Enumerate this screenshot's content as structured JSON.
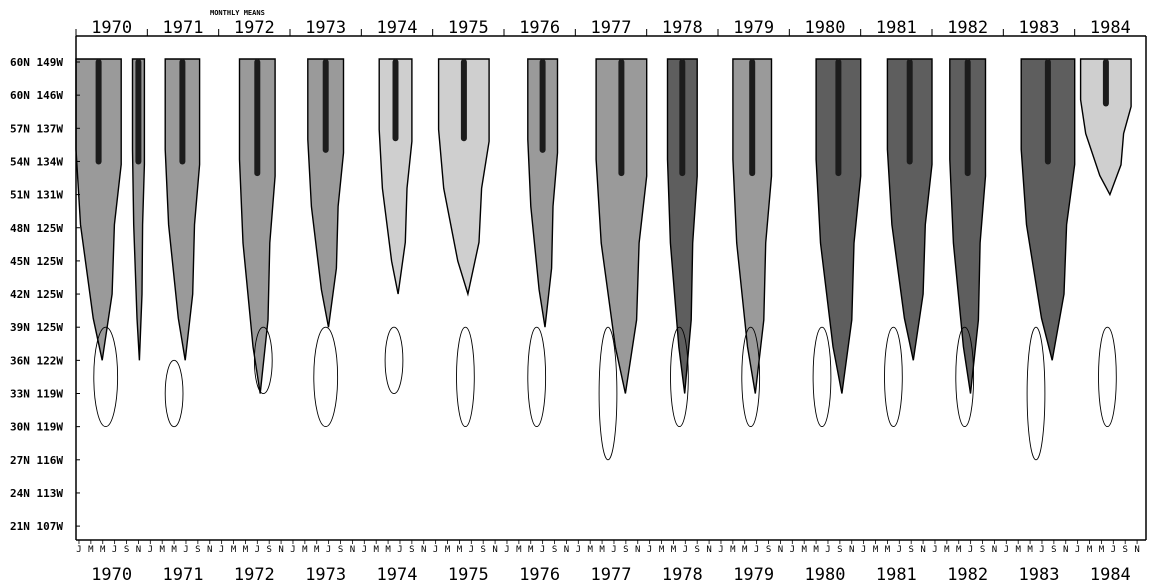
{
  "chart_data": {
    "type": "heatmap",
    "title": "MONTHLY MEANS",
    "x": {
      "years": [
        "1970",
        "1971",
        "1972",
        "1973",
        "1974",
        "1975",
        "1976",
        "1977",
        "1978",
        "1979",
        "1980",
        "1981",
        "1982",
        "1983",
        "1984"
      ],
      "month_ticks": [
        "J",
        "M",
        "M",
        "J",
        "S",
        "N"
      ],
      "range": [
        "1970-01",
        "1984-12"
      ]
    },
    "y": {
      "stations": [
        "60N 149W",
        "60N 146W",
        "57N 137W",
        "54N 134W",
        "51N 131W",
        "48N 125W",
        "45N 125W",
        "42N 125W",
        "39N 125W",
        "36N 122W",
        "33N 119W",
        "30N 119W",
        "27N 116W",
        "24N 113W",
        "21N 107W"
      ]
    },
    "shading_levels": [
      "unshaded",
      "light",
      "medium",
      "dark"
    ],
    "shaded_regions": [
      {
        "year": "1970",
        "start_month": 0.0,
        "end_month": 7.6,
        "southmost_station": "36N 122W",
        "shade": "medium"
      },
      {
        "year": "1970",
        "start_month": 9.5,
        "end_month": 11.5,
        "southmost_station": "36N 122W",
        "shade": "medium"
      },
      {
        "year": "1971",
        "start_month": 3.0,
        "end_month": 8.8,
        "southmost_station": "36N 122W",
        "shade": "medium"
      },
      {
        "year": "1972",
        "start_month": 3.5,
        "end_month": 9.5,
        "southmost_station": "33N 119W",
        "shade": "medium"
      },
      {
        "year": "1973",
        "start_month": 3.0,
        "end_month": 9.0,
        "southmost_station": "39N 125W",
        "shade": "medium"
      },
      {
        "year": "1974",
        "start_month": 3.0,
        "end_month": 8.5,
        "southmost_station": "42N 125W",
        "shade": "light"
      },
      {
        "year": "1975",
        "start_month": 1.0,
        "end_month": 9.5,
        "southmost_station": "42N 125W",
        "shade": "light"
      },
      {
        "year": "1976",
        "start_month": 4.0,
        "end_month": 9.0,
        "southmost_station": "39N 125W",
        "shade": "medium"
      },
      {
        "year": "1977",
        "start_month": 3.5,
        "end_month": 12.0,
        "southmost_station": "33N 119W",
        "shade": "medium"
      },
      {
        "year": "1978",
        "start_month": 3.5,
        "end_month": 8.5,
        "southmost_station": "33N 119W",
        "shade": "dark"
      },
      {
        "year": "1979",
        "start_month": 2.5,
        "end_month": 9.0,
        "southmost_station": "33N 119W",
        "shade": "medium"
      },
      {
        "year": "1980",
        "start_month": 4.5,
        "end_month": 12.0,
        "southmost_station": "33N 119W",
        "shade": "dark"
      },
      {
        "year": "1981",
        "start_month": 4.5,
        "end_month": 12.0,
        "southmost_station": "36N 122W",
        "shade": "dark"
      },
      {
        "year": "1982",
        "start_month": 3.0,
        "end_month": 9.0,
        "southmost_station": "33N 119W",
        "shade": "dark"
      },
      {
        "year": "1983",
        "start_month": 3.0,
        "end_month": 12.0,
        "southmost_station": "36N 122W",
        "shade": "dark"
      },
      {
        "year": "1984",
        "start_month": 1.0,
        "end_month": 9.5,
        "southmost_station": "51N 131W",
        "shade": "light"
      }
    ],
    "contour_regions": [
      {
        "year": "1970",
        "start_month": 3.0,
        "end_month": 7.0,
        "north_station": "39N 125W",
        "south_station": "30N 119W"
      },
      {
        "year": "1971",
        "start_month": 3.0,
        "end_month": 6.0,
        "north_station": "36N 122W",
        "south_station": "30N 119W"
      },
      {
        "year": "1972",
        "start_month": 6.0,
        "end_month": 9.0,
        "north_station": "39N 125W",
        "south_station": "33N 119W"
      },
      {
        "year": "1973",
        "start_month": 4.0,
        "end_month": 8.0,
        "north_station": "39N 125W",
        "south_station": "30N 119W"
      },
      {
        "year": "1974",
        "start_month": 4.0,
        "end_month": 7.0,
        "north_station": "39N 125W",
        "south_station": "33N 119W"
      },
      {
        "year": "1975",
        "start_month": 4.0,
        "end_month": 7.0,
        "north_station": "39N 125W",
        "south_station": "30N 119W"
      },
      {
        "year": "1976",
        "start_month": 4.0,
        "end_month": 7.0,
        "north_station": "39N 125W",
        "south_station": "30N 119W"
      },
      {
        "year": "1977",
        "start_month": 4.0,
        "end_month": 7.0,
        "north_station": "39N 125W",
        "south_station": "27N 116W"
      },
      {
        "year": "1978",
        "start_month": 4.0,
        "end_month": 7.0,
        "north_station": "39N 125W",
        "south_station": "30N 119W"
      },
      {
        "year": "1979",
        "start_month": 4.0,
        "end_month": 7.0,
        "north_station": "39N 125W",
        "south_station": "30N 119W"
      },
      {
        "year": "1980",
        "start_month": 4.0,
        "end_month": 7.0,
        "north_station": "39N 125W",
        "south_station": "30N 119W"
      },
      {
        "year": "1981",
        "start_month": 4.0,
        "end_month": 7.0,
        "north_station": "39N 125W",
        "south_station": "30N 119W"
      },
      {
        "year": "1982",
        "start_month": 4.0,
        "end_month": 7.0,
        "north_station": "39N 125W",
        "south_station": "30N 119W"
      },
      {
        "year": "1983",
        "start_month": 4.0,
        "end_month": 7.0,
        "north_station": "39N 125W",
        "south_station": "27N 116W"
      },
      {
        "year": "1984",
        "start_month": 4.0,
        "end_month": 7.0,
        "north_station": "39N 125W",
        "south_station": "30N 119W"
      }
    ],
    "grid": false,
    "colors": {
      "light": "#cfcfcf",
      "medium": "#9a9a9a",
      "dark": "#5e5e5e",
      "core": "#1c1c1c",
      "ink": "#000000"
    }
  }
}
